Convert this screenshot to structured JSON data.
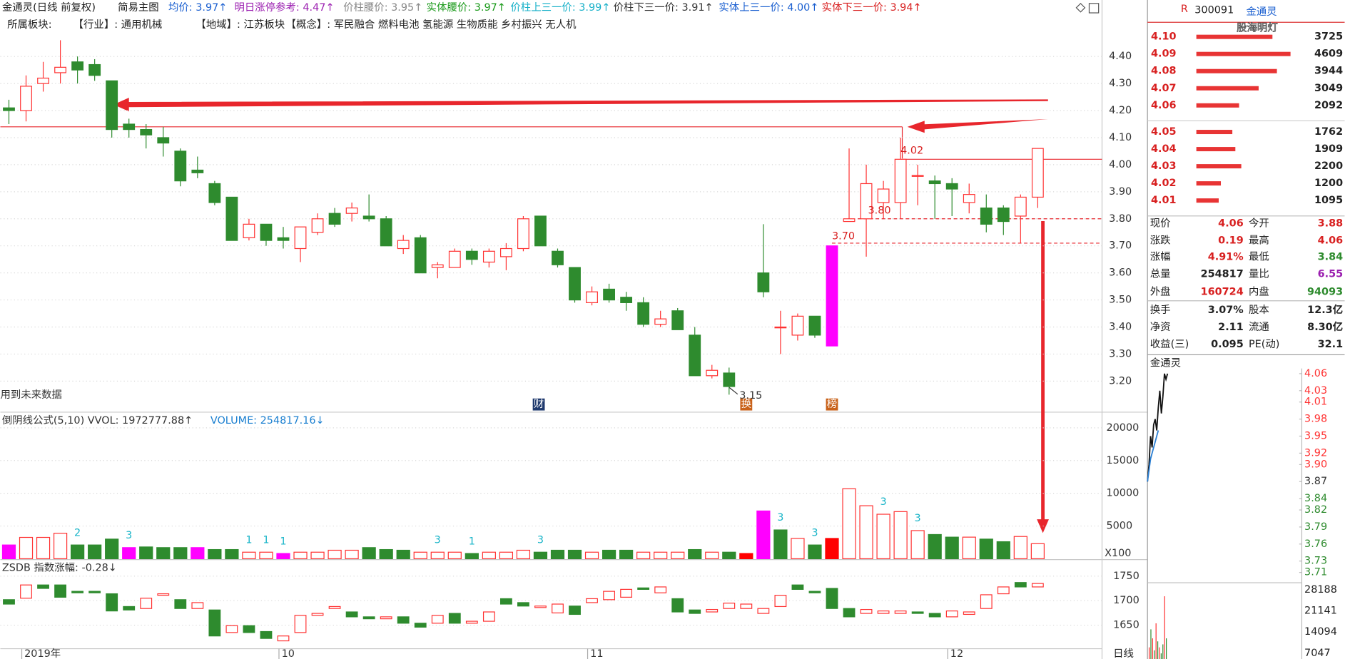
{
  "header": {
    "items": [
      "金通灵(日线 前复权)",
      "简易主图",
      "均价: 3.97↑",
      "明日涨停参考: 4.47↑",
      "价柱腰价: 3.95↑",
      "实体腰价: 3.97↑",
      "价柱上三一价: 3.99↑",
      "价柱下三一价: 3.91↑",
      "实体上三一价: 4.00↑",
      "实体下三一价: 3.94↑"
    ],
    "tags": [
      "所属板块:",
      "【行业】: 通用机械",
      "【地域】: 江苏板块",
      "【概念】: 军民融合 燃料电池 氢能源 生物质能 乡村振兴 无人机"
    ]
  },
  "chart_data": [
    {
      "type": "candlestick",
      "categories": [
        null,
        "2019年",
        null,
        null,
        null,
        null,
        null,
        null,
        null,
        null,
        null,
        null,
        null,
        null,
        null,
        null,
        "10",
        null,
        null,
        null,
        null,
        null,
        null,
        null,
        null,
        null,
        null,
        null,
        null,
        null,
        null,
        null,
        null,
        null,
        "11",
        null,
        null,
        null,
        null,
        null,
        null,
        null,
        null,
        null,
        null,
        null,
        null,
        null,
        null,
        null,
        null,
        null,
        null,
        null,
        null,
        "12",
        null,
        null,
        null,
        null,
        null
      ],
      "open": [
        4.21,
        4.2,
        4.3,
        4.34,
        4.38,
        4.37,
        4.31,
        4.15,
        4.13,
        4.1,
        4.05,
        3.98,
        3.93,
        3.88,
        3.73,
        3.78,
        3.73,
        3.69,
        3.75,
        3.82,
        3.82,
        3.81,
        3.8,
        3.69,
        3.73,
        3.62,
        3.62,
        3.68,
        3.64,
        3.66,
        3.69,
        3.81,
        3.68,
        3.62,
        3.49,
        3.54,
        3.51,
        3.49,
        3.41,
        3.46,
        3.37,
        3.22,
        3.23,
        null,
        3.6,
        3.4,
        3.37,
        3.44,
        3.33,
        3.79,
        3.8,
        3.86,
        3.86,
        3.96,
        3.94,
        3.93,
        3.86,
        3.84,
        3.84,
        3.81,
        3.88
      ],
      "high": [
        4.24,
        4.33,
        4.38,
        4.46,
        4.4,
        4.39,
        4.31,
        4.17,
        4.15,
        4.14,
        4.06,
        4.03,
        3.94,
        3.88,
        3.8,
        3.78,
        3.77,
        3.77,
        3.82,
        3.84,
        3.86,
        3.89,
        3.81,
        3.74,
        3.74,
        3.64,
        3.69,
        3.69,
        3.69,
        3.71,
        3.81,
        3.81,
        3.69,
        3.62,
        3.55,
        3.56,
        3.53,
        3.51,
        3.46,
        3.47,
        3.4,
        3.26,
        3.25,
        null,
        3.78,
        3.46,
        3.45,
        3.44,
        3.7,
        4.06,
        4.0,
        3.94,
        4.1,
        4.0,
        3.96,
        3.95,
        3.93,
        3.89,
        3.85,
        3.89,
        4.06
      ],
      "low": [
        4.15,
        4.16,
        4.27,
        4.3,
        4.3,
        4.31,
        4.1,
        4.1,
        4.06,
        4.03,
        3.92,
        3.95,
        3.85,
        3.72,
        3.72,
        3.7,
        3.69,
        3.64,
        3.74,
        3.77,
        3.79,
        3.79,
        3.7,
        3.67,
        3.6,
        3.58,
        3.62,
        3.63,
        3.62,
        3.61,
        3.68,
        3.7,
        3.62,
        3.49,
        3.48,
        3.49,
        3.46,
        3.4,
        3.4,
        3.39,
        3.22,
        3.21,
        3.15,
        null,
        3.51,
        3.3,
        3.35,
        3.36,
        3.33,
        3.79,
        3.66,
        3.8,
        3.8,
        3.85,
        3.8,
        3.81,
        3.82,
        3.75,
        3.74,
        3.71,
        3.84
      ],
      "close": [
        4.2,
        4.29,
        4.32,
        4.36,
        4.35,
        4.33,
        4.13,
        4.13,
        4.11,
        4.08,
        3.94,
        3.97,
        3.86,
        3.72,
        3.78,
        3.72,
        3.72,
        3.77,
        3.8,
        3.78,
        3.84,
        3.8,
        3.7,
        3.72,
        3.6,
        3.63,
        3.68,
        3.65,
        3.68,
        3.69,
        3.8,
        3.7,
        3.63,
        3.5,
        3.53,
        3.5,
        3.49,
        3.41,
        3.43,
        3.39,
        3.22,
        3.24,
        3.18,
        null,
        3.53,
        3.4,
        3.44,
        3.37,
        3.7,
        3.8,
        3.93,
        3.91,
        4.02,
        3.96,
        3.93,
        3.91,
        3.89,
        3.78,
        3.79,
        3.88,
        4.06
      ],
      "colors": [
        "#2e8b2e",
        "#ff3232",
        "#ff3232",
        "#ff3232",
        "#2e8b2e",
        "#2e8b2e",
        "#2e8b2e",
        "#2e8b2e",
        "#2e8b2e",
        "#2e8b2e",
        "#2e8b2e",
        "#2e8b2e",
        "#2e8b2e",
        "#2e8b2e",
        "#ff3232",
        "#2e8b2e",
        "#2e8b2e",
        "#ff3232",
        "#ff3232",
        "#2e8b2e",
        "#ff3232",
        "#2e8b2e",
        "#2e8b2e",
        "#ff3232",
        "#2e8b2e",
        "#ff3232",
        "#ff3232",
        "#2e8b2e",
        "#ff3232",
        "#ff3232",
        "#ff3232",
        "#2e8b2e",
        "#2e8b2e",
        "#2e8b2e",
        "#ff3232",
        "#2e8b2e",
        "#2e8b2e",
        "#2e8b2e",
        "#ff3232",
        "#2e8b2e",
        "#2e8b2e",
        "#ff3232",
        "#2e8b2e",
        null,
        "#2e8b2e",
        "#ff3232",
        "#ff3232",
        "#2e8b2e",
        "#ff00ff",
        "#ff3232",
        "#ff3232",
        "#ff3232",
        "#ff3232",
        "#ff3232",
        "#2e8b2e",
        "#2e8b2e",
        "#ff3232",
        "#2e8b2e",
        "#2e8b2e",
        "#ff3232",
        "#ff3232"
      ],
      "hollow_color": "#ff3232",
      "ylim": [
        3.12,
        4.52
      ],
      "yticks": [
        {
          "value": 3.2,
          "label": "3.20"
        },
        {
          "value": 3.3,
          "label": "3.30"
        },
        {
          "value": 3.4,
          "label": "3.40"
        },
        {
          "value": 3.5,
          "label": "3.50"
        },
        {
          "value": 3.6,
          "label": "3.60"
        },
        {
          "value": 3.7,
          "label": "3.70"
        },
        {
          "value": 3.8,
          "label": "3.80"
        },
        {
          "value": 3.9,
          "label": "3.90"
        },
        {
          "value": 4.0,
          "label": "4.00"
        },
        {
          "value": 4.1,
          "label": "4.10"
        },
        {
          "value": 4.2,
          "label": "4.20"
        },
        {
          "value": 4.3,
          "label": "4.30"
        },
        {
          "value": 4.4,
          "label": "4.40"
        }
      ],
      "grid": true,
      "reference_lines": [
        {
          "value": 4.14,
          "style": "solid"
        },
        {
          "value": 4.02,
          "style": "solid"
        },
        {
          "value": 3.8,
          "style": "dashed"
        },
        {
          "value": 3.71,
          "style": "dashed"
        }
      ],
      "annotations": [
        "4.02",
        "3.80",
        "3.70",
        "3.15",
        "用到未来数据",
        "财",
        "换",
        "榜"
      ]
    },
    {
      "type": "bar",
      "title": "倒阴线公式(5,10) VVOL: 1972777.88↑",
      "subtitle": "VOLUME: 254817.16↓",
      "values": [
        2100,
        3260,
        3260,
        3900,
        2100,
        2100,
        3000,
        1700,
        1800,
        1700,
        1700,
        1700,
        1400,
        1400,
        1000,
        1000,
        800,
        1000,
        1000,
        1300,
        1300,
        1700,
        1400,
        1300,
        1000,
        1000,
        1000,
        800,
        1000,
        1000,
        1300,
        1000,
        1300,
        1300,
        1000,
        1300,
        1300,
        1000,
        1000,
        1000,
        1400,
        1000,
        1000,
        800,
        7300,
        4400,
        3100,
        2100,
        3100,
        10700,
        8100,
        6800,
        7200,
        4300,
        3700,
        3300,
        3300,
        3000,
        2600,
        3400,
        2300
      ],
      "colors": [
        "#ff00ff",
        "#ff3232",
        "#ff3232",
        "#ff3232",
        "#2e8b2e",
        "#2e8b2e",
        "#2e8b2e",
        "#ff00ff",
        "#2e8b2e",
        "#2e8b2e",
        "#2e8b2e",
        "#ff00ff",
        "#2e8b2e",
        "#2e8b2e",
        "#ff3232",
        "#ff3232",
        "#ff00ff",
        "#ff3232",
        "#ff3232",
        "#ff3232",
        "#ff3232",
        "#2e8b2e",
        "#2e8b2e",
        "#2e8b2e",
        "#ff3232",
        "#ff3232",
        "#ff3232",
        "#2e8b2e",
        "#ff3232",
        "#ff3232",
        "#ff3232",
        "#2e8b2e",
        "#2e8b2e",
        "#2e8b2e",
        "#ff3232",
        "#2e8b2e",
        "#2e8b2e",
        "#ff3232",
        "#ff3232",
        "#ff3232",
        "#2e8b2e",
        "#ff3232",
        "#2e8b2e",
        "#ff0000",
        "#ff00ff",
        "#2e8b2e",
        "#ff3232",
        "#2e8b2e",
        "#ff0000",
        "#ff3232",
        "#ff3232",
        "#ff3232",
        "#ff3232",
        "#ff3232",
        "#2e8b2e",
        "#2e8b2e",
        "#ff3232",
        "#2e8b2e",
        "#2e8b2e",
        "#ff3232",
        "#ff3232"
      ],
      "hollow_color": "#ff3232",
      "value_labels": [
        null,
        null,
        null,
        null,
        "2",
        null,
        null,
        "3",
        null,
        null,
        null,
        null,
        null,
        null,
        "1",
        "1",
        "1",
        null,
        null,
        null,
        null,
        null,
        null,
        null,
        null,
        "3",
        null,
        "1",
        null,
        null,
        null,
        "3",
        null,
        null,
        null,
        null,
        null,
        null,
        null,
        null,
        null,
        null,
        null,
        null,
        null,
        "3",
        null,
        "3",
        null,
        null,
        null,
        "3",
        null,
        "3",
        null,
        null,
        null,
        null,
        null,
        null,
        null
      ],
      "ylim": [
        0,
        22000
      ],
      "yticks": [
        5000,
        10000,
        15000,
        20000
      ],
      "unit_label": "X100",
      "grid": true
    },
    {
      "type": "candlestick-body",
      "title": "ZSDB 指数涨幅: -0.28↓",
      "open": [
        1702,
        1705,
        1732,
        1732,
        1719,
        1719,
        1714,
        1688,
        1684,
        1711,
        1702,
        1684,
        1681,
        1635,
        1649,
        1637,
        1618,
        1635,
        1670,
        1684,
        1677,
        1667,
        1663,
        1667,
        1654,
        1654,
        1674,
        1654,
        1658,
        1704,
        1696,
        1686,
        1675,
        1689,
        1696,
        1702,
        1707,
        1726,
        1716,
        1704,
        1681,
        1677,
        1684,
        1684,
        1674,
        1688,
        1732,
        1719,
        1725,
        1684,
        1674,
        1674,
        1674,
        1677,
        1674,
        1667,
        1672,
        1684,
        1714,
        1737,
        1728
      ],
      "close": [
        1693,
        1732,
        1725,
        1707,
        1716,
        1716,
        1679,
        1681,
        1705,
        1714,
        1684,
        1696,
        1628,
        1649,
        1635,
        1623,
        1628,
        1670,
        1674,
        1688,
        1667,
        1663,
        1667,
        1654,
        1646,
        1670,
        1654,
        1658,
        1677,
        1693,
        1689,
        1689,
        1693,
        1672,
        1704,
        1719,
        1723,
        1723,
        1728,
        1677,
        1674,
        1682,
        1695,
        1693,
        1684,
        1711,
        1723,
        1716,
        1684,
        1667,
        1682,
        1679,
        1679,
        1674,
        1667,
        1679,
        1677,
        1712,
        1728,
        1728,
        1735
      ],
      "up_color": "#ff3232",
      "down_color": "#2e8b2e",
      "ylim": [
        1588,
        1775
      ],
      "yticks": [
        1650,
        1700,
        1750
      ],
      "grid": true
    },
    {
      "type": "line",
      "title": "金通灵",
      "series": [
        {
          "name": "价格",
          "color": "#111111",
          "values": [
            3.87,
            3.9,
            3.95,
            3.93,
            3.97,
            3.98,
            3.96,
            4.0,
            4.03,
            3.99,
            4.02,
            4.06,
            4.05,
            4.06
          ]
        },
        {
          "name": "均价",
          "color": "#2a7fd4",
          "values": [
            3.87,
            3.89,
            3.91,
            3.92,
            3.93,
            3.94,
            3.95,
            3.96
          ]
        }
      ],
      "ylim": [
        3.71,
        4.06
      ],
      "yticks": [
        4.06,
        4.03,
        4.01,
        3.98,
        3.95,
        3.92,
        {
          "value": 3.9,
          "label": "3.90"
        },
        3.87,
        3.84,
        3.82,
        3.79,
        3.76,
        3.73,
        3.71
      ],
      "ytick_colors": [
        "#ff3232",
        "#ff3232",
        "#ff3232",
        "#ff3232",
        "#ff3232",
        "#ff3232",
        "#ff3232",
        "#333333",
        "#2e8b2e",
        "#2e8b2e",
        "#2e8b2e",
        "#2e8b2e",
        "#2e8b2e",
        "#2e8b2e"
      ]
    },
    {
      "type": "bar",
      "values": [
        9000,
        15000,
        12000,
        8000,
        17000,
        11000,
        9000,
        7000,
        10000,
        26000,
        12000
      ],
      "colors": [
        "#ff3232",
        "#2e8b2e",
        "#ff3232",
        "#2e8b2e",
        "#ff3232",
        "#2e8b2e",
        "#ff3232",
        "#2e8b2e",
        "#2e8b2e",
        "#ff3232",
        "#2e8b2e"
      ],
      "ylim": [
        0,
        30500
      ],
      "yticks": [
        28188,
        21141,
        14094,
        7047
      ],
      "footer": "日线"
    }
  ],
  "order_book": {
    "badge": "R",
    "code": "300091",
    "name": "金通灵",
    "watermark": "股海明灯",
    "xlim": [
      0,
      4700
    ],
    "asks": [
      {
        "price": "4.10",
        "volume": 3725
      },
      {
        "price": "4.09",
        "volume": 4609
      },
      {
        "price": "4.08",
        "volume": 3944
      },
      {
        "price": "4.07",
        "volume": 3049
      },
      {
        "price": "4.06",
        "volume": 2092
      }
    ],
    "bids": [
      {
        "price": "4.05",
        "volume": 1762
      },
      {
        "price": "4.04",
        "volume": 1909
      },
      {
        "price": "4.03",
        "volume": 2200
      },
      {
        "price": "4.02",
        "volume": 1200
      },
      {
        "price": "4.01",
        "volume": 1095
      }
    ]
  },
  "quote": {
    "rows": [
      [
        "现价",
        "4.06",
        "今开",
        "3.88"
      ],
      [
        "涨跌",
        "0.19",
        "最高",
        "4.06"
      ],
      [
        "涨幅",
        "4.91%",
        "最低",
        "3.84"
      ],
      [
        "总量",
        "254817",
        "量比",
        "6.55"
      ],
      [
        "外盘",
        "160724",
        "内盘",
        "94093"
      ],
      [
        "换手",
        "3.07%",
        "股本",
        "12.3亿"
      ],
      [
        "净资",
        "2.11",
        "流通",
        "8.30亿"
      ],
      [
        "收益(三)",
        "0.095",
        "PE(动)",
        "32.1"
      ]
    ]
  }
}
